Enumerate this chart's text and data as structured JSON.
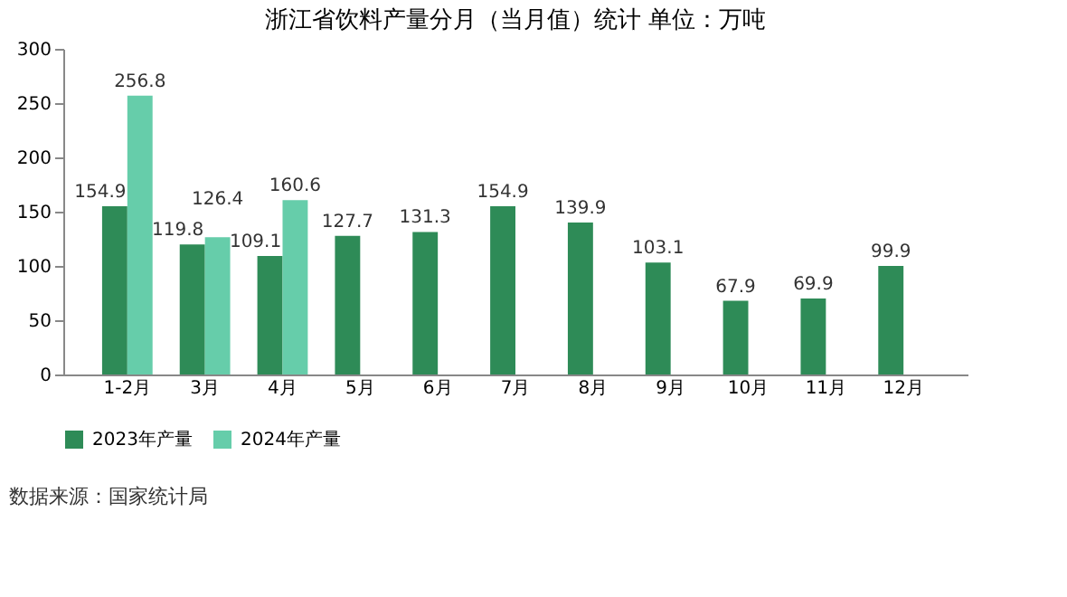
{
  "chart_data": {
    "type": "bar",
    "title": "浙江省饮料产量分月（当月值）统计  单位：万吨",
    "categories": [
      "1-2月",
      "3月",
      "4月",
      "5月",
      "6月",
      "7月",
      "8月",
      "9月",
      "10月",
      "11月",
      "12月"
    ],
    "series": [
      {
        "name": "2023年产量",
        "color": "#2e8b57",
        "values": [
          154.9,
          119.8,
          109.1,
          127.7,
          131.3,
          154.9,
          139.9,
          103.1,
          67.9,
          69.9,
          99.9
        ]
      },
      {
        "name": "2024年产量",
        "color": "#66cdaa",
        "values": [
          256.8,
          126.4,
          160.6,
          null,
          null,
          null,
          null,
          null,
          null,
          null,
          null
        ]
      }
    ],
    "ylim": [
      0,
      300
    ],
    "yticks": [
      0,
      50,
      100,
      150,
      200,
      250,
      300
    ],
    "grid": false,
    "legend": "bottom",
    "data_labels": true,
    "annotations": [
      "数据来源：国家统计局"
    ]
  }
}
